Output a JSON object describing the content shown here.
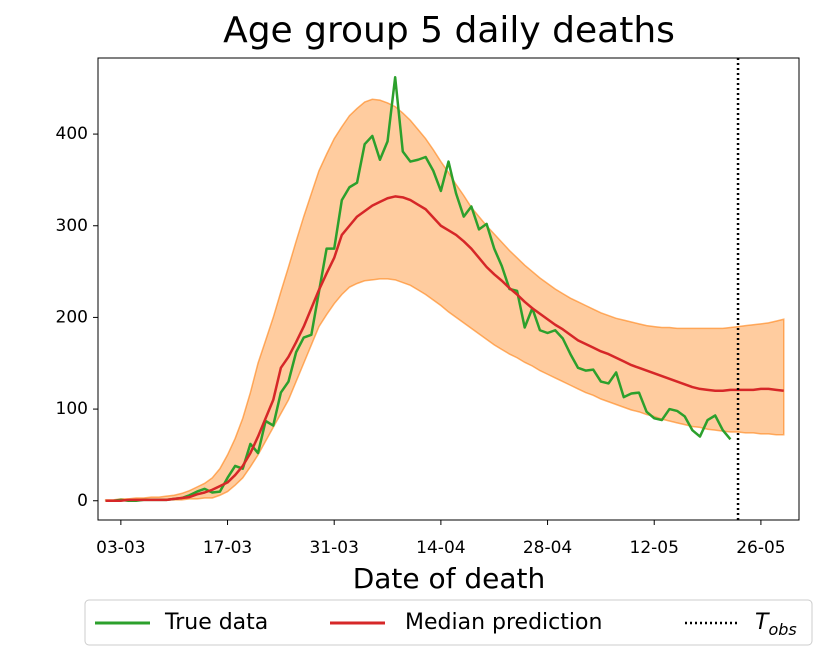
{
  "chart_data": {
    "type": "line",
    "title": "Age group 5 daily deaths",
    "xlabel": "Date of death",
    "x": [
      "01-03",
      "02-03",
      "03-03",
      "04-03",
      "05-03",
      "06-03",
      "07-03",
      "08-03",
      "09-03",
      "10-03",
      "11-03",
      "12-03",
      "13-03",
      "14-03",
      "15-03",
      "16-03",
      "17-03",
      "18-03",
      "19-03",
      "20-03",
      "21-03",
      "22-03",
      "23-03",
      "24-03",
      "25-03",
      "26-03",
      "27-03",
      "28-03",
      "29-03",
      "30-03",
      "31-03",
      "01-04",
      "02-04",
      "03-04",
      "04-04",
      "05-04",
      "06-04",
      "07-04",
      "08-04",
      "09-04",
      "10-04",
      "11-04",
      "12-04",
      "13-04",
      "14-04",
      "15-04",
      "16-04",
      "17-04",
      "18-04",
      "19-04",
      "20-04",
      "21-04",
      "22-04",
      "23-04",
      "24-04",
      "25-04",
      "26-04",
      "27-04",
      "28-04",
      "29-04",
      "30-04",
      "01-05",
      "02-05",
      "03-05",
      "04-05",
      "05-05",
      "06-05",
      "07-05",
      "08-05",
      "09-05",
      "10-05",
      "11-05",
      "12-05",
      "13-05",
      "14-05",
      "15-05",
      "16-05",
      "17-05",
      "18-05",
      "19-05",
      "20-05",
      "21-05",
      "22-05",
      "23-05",
      "24-05",
      "25-05",
      "26-05",
      "27-05",
      "28-05",
      "29-05"
    ],
    "xlim": [
      "29-02",
      "31-05"
    ],
    "xticks": [
      "03-03",
      "17-03",
      "31-03",
      "14-04",
      "28-04",
      "12-05",
      "26-05"
    ],
    "ylim": [
      -21,
      483
    ],
    "yticks": [
      0,
      100,
      200,
      300,
      400
    ],
    "series": [
      {
        "name": "True data",
        "color": "#2ca02c",
        "values": [
          0,
          0,
          1,
          0,
          0,
          1,
          1,
          1,
          1,
          2,
          3,
          6,
          10,
          13,
          9,
          10,
          25,
          38,
          35,
          62,
          52,
          87,
          82,
          118,
          130,
          162,
          178,
          181,
          228,
          275,
          275,
          328,
          342,
          347,
          389,
          398,
          372,
          392,
          462,
          381,
          370,
          372,
          375,
          360,
          338,
          370,
          335,
          310,
          321,
          296,
          302,
          275,
          256,
          231,
          229,
          189,
          210,
          186,
          183,
          186,
          177,
          160,
          145,
          142,
          143,
          130,
          128,
          140,
          113,
          117,
          118,
          97,
          90,
          88,
          100,
          98,
          92,
          77,
          70,
          88,
          93,
          77,
          67,
          null,
          null,
          null,
          null,
          null,
          null,
          null
        ]
      },
      {
        "name": "Median prediction",
        "color": "#d62728",
        "values": [
          0,
          0,
          0,
          1,
          1,
          1,
          1,
          1,
          1,
          2,
          3,
          4,
          7,
          9,
          12,
          16,
          20,
          28,
          38,
          52,
          70,
          90,
          110,
          145,
          157,
          173,
          190,
          210,
          230,
          248,
          265,
          290,
          300,
          310,
          316,
          322,
          326,
          330,
          332,
          331,
          328,
          323,
          318,
          309,
          300,
          295,
          290,
          283,
          275,
          265,
          255,
          247,
          240,
          232,
          225,
          217,
          210,
          204,
          198,
          192,
          187,
          181,
          175,
          171,
          167,
          163,
          160,
          156,
          152,
          148,
          145,
          142,
          139,
          136,
          133,
          130,
          127,
          124,
          122,
          121,
          120,
          120,
          121,
          121,
          121,
          121,
          122,
          122,
          121,
          120
        ]
      }
    ],
    "band": {
      "color": "#ff7f0e",
      "upper": [
        1,
        1,
        2,
        2,
        3,
        3,
        4,
        4,
        5,
        6,
        8,
        11,
        15,
        19,
        25,
        35,
        50,
        68,
        90,
        118,
        150,
        175,
        200,
        228,
        255,
        283,
        310,
        335,
        360,
        378,
        395,
        408,
        420,
        428,
        435,
        438,
        437,
        434,
        430,
        423,
        415,
        405,
        395,
        383,
        370,
        358,
        345,
        333,
        320,
        310,
        300,
        291,
        282,
        273,
        265,
        257,
        250,
        243,
        237,
        231,
        226,
        221,
        217,
        213,
        209,
        205,
        202,
        199,
        197,
        195,
        193,
        191,
        190,
        189,
        189,
        188,
        188,
        188,
        188,
        188,
        188,
        188,
        189,
        190,
        191,
        192,
        193,
        194,
        196,
        198
      ],
      "lower": [
        0,
        0,
        0,
        0,
        0,
        1,
        1,
        1,
        1,
        1,
        1,
        2,
        2,
        3,
        3,
        6,
        10,
        17,
        25,
        37,
        50,
        65,
        80,
        95,
        110,
        130,
        150,
        170,
        190,
        203,
        215,
        225,
        233,
        237,
        240,
        241,
        242,
        242,
        241,
        238,
        235,
        230,
        225,
        219,
        213,
        206,
        200,
        194,
        188,
        182,
        176,
        170,
        165,
        160,
        156,
        151,
        147,
        142,
        138,
        134,
        130,
        126,
        122,
        118,
        115,
        111,
        108,
        105,
        102,
        99,
        97,
        94,
        92,
        89,
        87,
        85,
        83,
        81,
        80,
        78,
        77,
        76,
        75,
        75,
        74,
        74,
        73,
        73,
        72,
        72
      ]
    },
    "tobs": {
      "x": "23-05",
      "label": "T",
      "label_sub": "obs",
      "color": "#000000"
    }
  }
}
